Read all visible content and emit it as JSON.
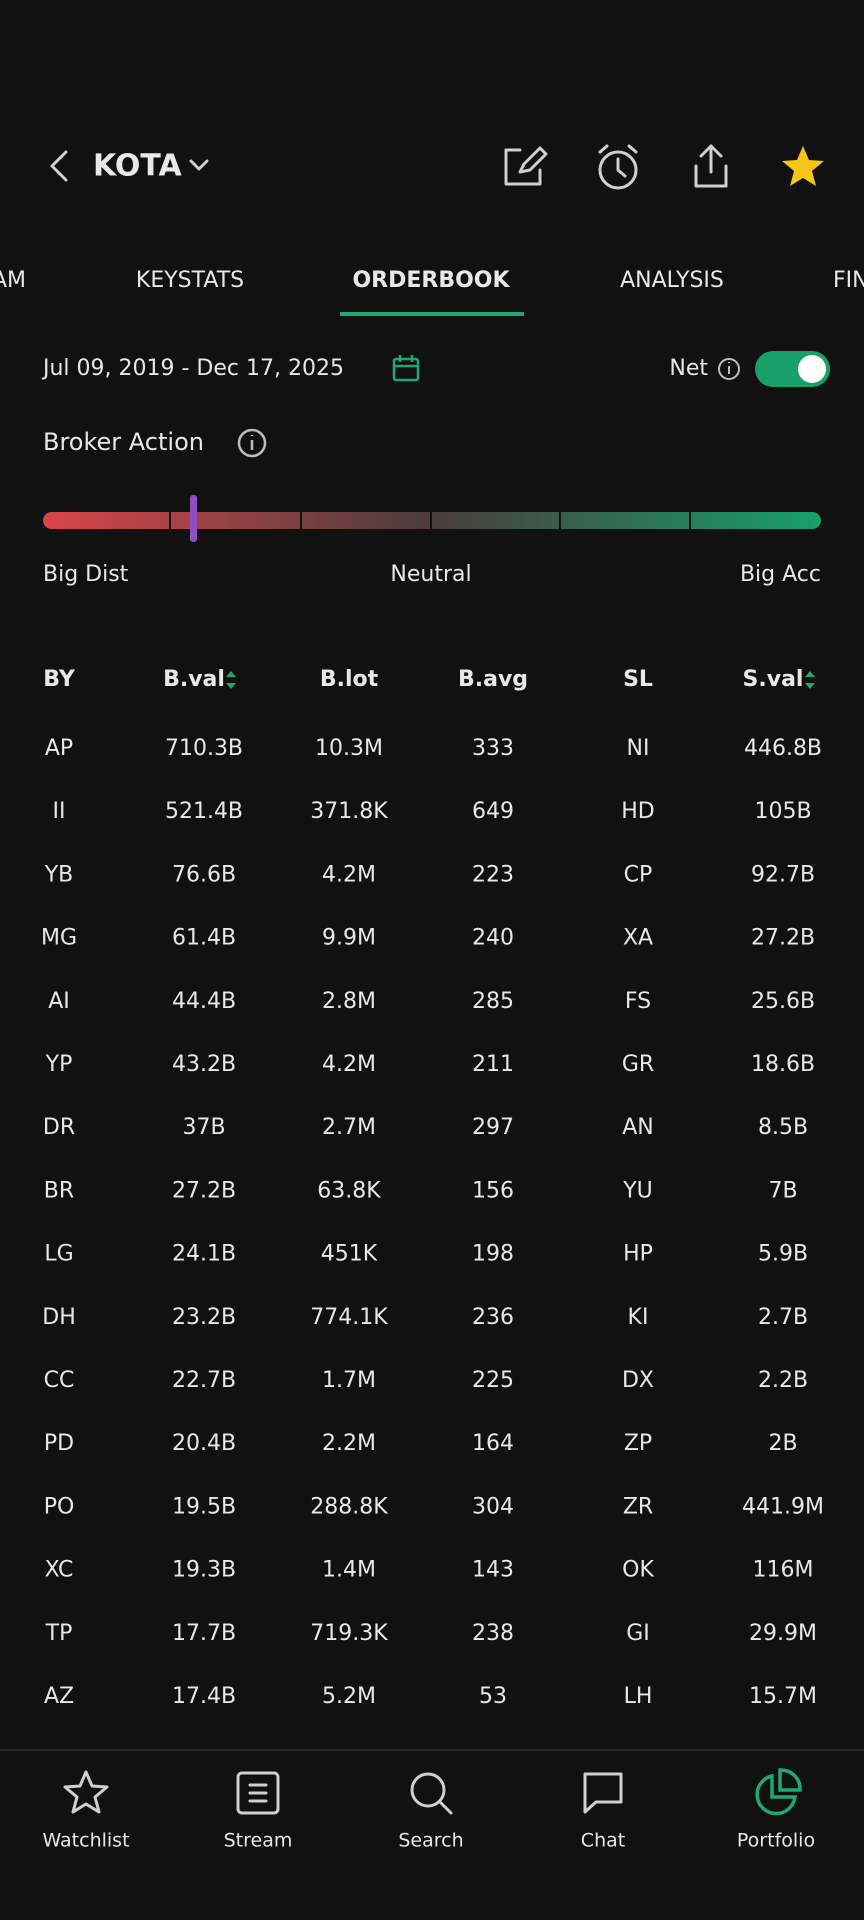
{
  "header": {
    "title": "KOTA"
  },
  "tabs": {
    "items": [
      "AM",
      "KEYSTATS",
      "ORDERBOOK",
      "ANALYSIS",
      "FIN"
    ],
    "active": 2
  },
  "filters": {
    "date_range": "Jul 09, 2019 - Dec 17, 2025",
    "net_label": "Net"
  },
  "broker_action": {
    "title": "Broker Action",
    "left": "Big Dist",
    "center": "Neutral",
    "right": "Big Acc"
  },
  "table": {
    "columns": [
      "BY",
      "B.val",
      "B.lot",
      "B.avg",
      "SL",
      "S.val"
    ],
    "rows": [
      {
        "by": "AP",
        "by_color": "#9657c0",
        "bval": "710.3B",
        "blot": "10.3M",
        "bavg": "333",
        "sl": "NI",
        "sl_color": "#1fa872",
        "sval": "446.8B"
      },
      {
        "by": "II",
        "by_color": "#9657c0",
        "bval": "521.4B",
        "blot": "371.8K",
        "bavg": "649",
        "sl": "HD",
        "sl_color": "#e5484d",
        "sval": "105B"
      },
      {
        "by": "YB",
        "by_color": "#9657c0",
        "bval": "76.6B",
        "blot": "4.2M",
        "bavg": "223",
        "sl": "CP",
        "sl_color": "#e5484d",
        "sval": "92.7B"
      },
      {
        "by": "MG",
        "by_color": "#9657c0",
        "bval": "61.4B",
        "blot": "9.9M",
        "bavg": "240",
        "sl": "XA",
        "sl_color": "#e5484d",
        "sval": "27.2B"
      },
      {
        "by": "AI",
        "by_color": "#e5484d",
        "bval": "44.4B",
        "blot": "2.8M",
        "bavg": "285",
        "sl": "FS",
        "sl_color": "#e5484d",
        "sval": "25.6B"
      },
      {
        "by": "YP",
        "by_color": "#e5484d",
        "bval": "43.2B",
        "blot": "4.2M",
        "bavg": "211",
        "sl": "GR",
        "sl_color": "#9657c0",
        "sval": "18.6B"
      },
      {
        "by": "DR",
        "by_color": "#e5484d",
        "bval": "37B",
        "blot": "2.7M",
        "bavg": "297",
        "sl": "AN",
        "sl_color": "#9657c0",
        "sval": "8.5B"
      },
      {
        "by": "BR",
        "by_color": "#9657c0",
        "bval": "27.2B",
        "blot": "63.8K",
        "bavg": "156",
        "sl": "YU",
        "sl_color": "#e5484d",
        "sval": "7B"
      },
      {
        "by": "LG",
        "by_color": "#9657c0",
        "bval": "24.1B",
        "blot": "451K",
        "bavg": "198",
        "sl": "HP",
        "sl_color": "#9657c0",
        "sval": "5.9B"
      },
      {
        "by": "DH",
        "by_color": "#9657c0",
        "bval": "23.2B",
        "blot": "774.1K",
        "bavg": "236",
        "sl": "KI",
        "sl_color": "#9657c0",
        "sval": "2.7B"
      },
      {
        "by": "CC",
        "by_color": "#1fa872",
        "bval": "22.7B",
        "blot": "1.7M",
        "bavg": "225",
        "sl": "DX",
        "sl_color": "#1fa872",
        "sval": "2.2B"
      },
      {
        "by": "PD",
        "by_color": "#9657c0",
        "bval": "20.4B",
        "blot": "2.2M",
        "bavg": "164",
        "sl": "ZP",
        "sl_color": "#e5484d",
        "sval": "2B"
      },
      {
        "by": "PO",
        "by_color": "#9657c0",
        "bval": "19.5B",
        "blot": "288.8K",
        "bavg": "304",
        "sl": "ZR",
        "sl_color": "#9657c0",
        "sval": "441.9M"
      },
      {
        "by": "XC",
        "by_color": "#9657c0",
        "bval": "19.3B",
        "blot": "1.4M",
        "bavg": "143",
        "sl": "OK",
        "sl_color": "#9657c0",
        "sval": "116M"
      },
      {
        "by": "TP",
        "by_color": "#e5484d",
        "bval": "17.7B",
        "blot": "719.3K",
        "bavg": "238",
        "sl": "GI",
        "sl_color": "#e5484d",
        "sval": "29.9M"
      },
      {
        "by": "AZ",
        "by_color": "#9657c0",
        "bval": "17.4B",
        "blot": "5.2M",
        "bavg": "53",
        "sl": "LH",
        "sl_color": "#e5484d",
        "sval": "15.7M"
      }
    ]
  },
  "nav": {
    "items": [
      "Watchlist",
      "Stream",
      "Search",
      "Chat",
      "Portfolio"
    ],
    "active": 4
  }
}
